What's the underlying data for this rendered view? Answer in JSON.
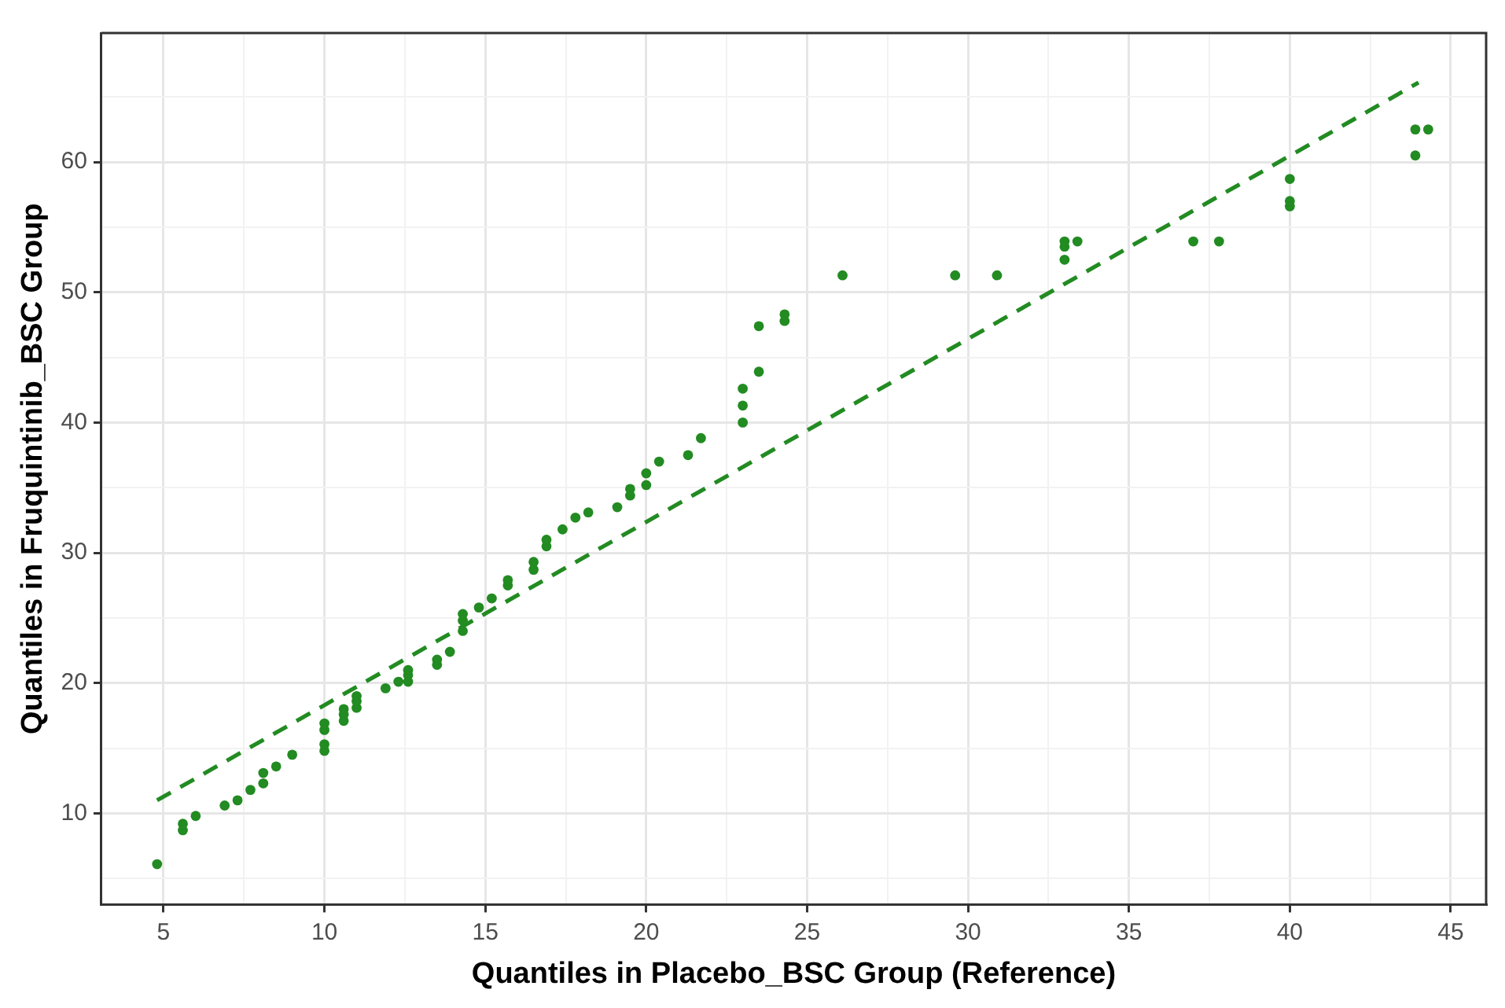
{
  "chart_data": {
    "type": "scatter",
    "xlabel": "Quantiles in Placebo_BSC Group (Reference)",
    "ylabel": "Quantiles in Fruquintinib_BSC Group",
    "xlim": [
      3.07,
      46.1
    ],
    "ylim": [
      3.0,
      69.9
    ],
    "xticks": [
      5,
      {
        "value": 7.5,
        "label": null
      },
      10,
      {
        "value": 12.5,
        "label": null
      },
      15,
      {
        "value": 17.5,
        "label": null
      },
      20,
      {
        "value": 22.5,
        "label": null
      },
      25,
      {
        "value": 27.5,
        "label": null
      },
      30,
      {
        "value": 32.5,
        "label": null
      },
      35,
      {
        "value": 37.5,
        "label": null
      },
      40,
      {
        "value": 42.5,
        "label": null
      },
      45
    ],
    "yticks": [
      {
        "value": 5,
        "label": null
      },
      10,
      {
        "value": 15,
        "label": null
      },
      20,
      {
        "value": 25,
        "label": null
      },
      30,
      {
        "value": 35,
        "label": null
      },
      40,
      {
        "value": 45,
        "label": null
      },
      50,
      {
        "value": 55,
        "label": null
      },
      60,
      {
        "value": 65,
        "label": null
      }
    ],
    "grid": true,
    "legend": false,
    "marker": "circle",
    "series": [
      {
        "type": "scatter",
        "color": "#228b22",
        "x": [
          4.8,
          5.6,
          5.6,
          6.0,
          6.9,
          7.3,
          7.7,
          8.1,
          8.1,
          8.5,
          9.0,
          10.0,
          10.0,
          10.0,
          10.0,
          10.6,
          10.6,
          10.6,
          11.0,
          11.0,
          11.0,
          11.9,
          12.3,
          12.6,
          12.6,
          12.6,
          13.5,
          13.5,
          13.9,
          14.3,
          14.3,
          14.3,
          14.8,
          15.2,
          15.7,
          15.7,
          16.5,
          16.5,
          16.9,
          16.9,
          17.4,
          17.8,
          18.2,
          19.1,
          19.5,
          19.5,
          20.0,
          20.0,
          20.4,
          21.3,
          21.7,
          23.0,
          23.0,
          23.0,
          23.5,
          23.5,
          24.3,
          24.3,
          26.1,
          29.6,
          30.9,
          33.0,
          33.0,
          33.0,
          33.4,
          37.0,
          37.8,
          40.0,
          40.0,
          40.0,
          43.9,
          44.3,
          43.9
        ],
        "values": [
          6.1,
          9.2,
          8.7,
          9.8,
          10.6,
          11.0,
          11.8,
          12.3,
          13.1,
          13.6,
          14.5,
          14.8,
          15.3,
          16.4,
          16.9,
          17.1,
          17.6,
          18.0,
          18.1,
          18.6,
          19.0,
          19.6,
          20.1,
          20.1,
          20.6,
          21.0,
          21.4,
          21.8,
          22.4,
          24.0,
          24.8,
          25.3,
          25.8,
          26.5,
          27.5,
          27.9,
          28.7,
          29.3,
          30.5,
          31.0,
          31.8,
          32.7,
          33.1,
          33.5,
          34.4,
          34.9,
          35.2,
          36.1,
          37.0,
          37.5,
          38.8,
          40.0,
          41.3,
          42.6,
          43.9,
          47.4,
          47.8,
          48.3,
          51.3,
          51.3,
          51.3,
          52.5,
          53.5,
          53.9,
          53.9,
          53.9,
          53.9,
          56.6,
          57.0,
          58.7,
          60.5,
          62.5,
          62.5
        ]
      },
      {
        "type": "line",
        "color": "#228b22",
        "line_style": "dashed",
        "marker": "none",
        "x": [
          4.8,
          44.0
        ],
        "values": [
          11.0,
          66.1
        ]
      }
    ]
  }
}
